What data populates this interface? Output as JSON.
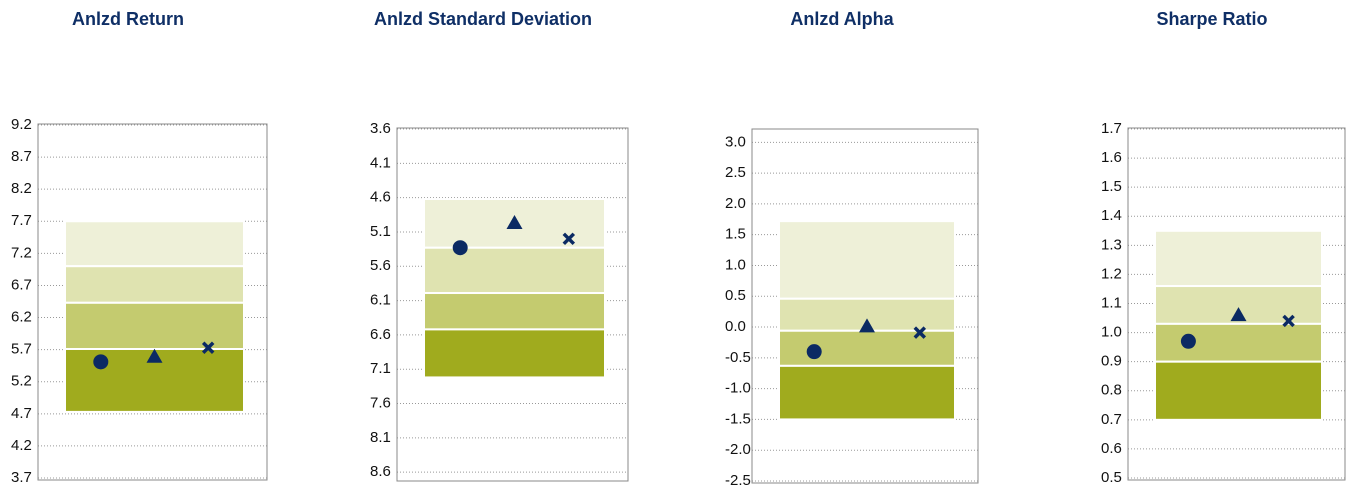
{
  "chart_data": [
    {
      "type": "range-markers",
      "title": "Anlzd Return",
      "ylim": [
        3.7,
        9.2
      ],
      "yticks": [
        9.2,
        8.7,
        8.2,
        7.7,
        7.2,
        6.7,
        6.2,
        5.7,
        5.2,
        4.7,
        4.2,
        3.7
      ],
      "grid": true,
      "inverted": false,
      "boundaries": [
        7.7,
        7.0,
        6.43,
        5.71,
        4.73
      ],
      "band_colors": [
        "#eef0d8",
        "#dfe3b0",
        "#c4cb6f",
        "#a0ab1e"
      ],
      "marker_color": "#0b2a63",
      "points": [
        {
          "marker": "circle",
          "value": 5.51
        },
        {
          "marker": "triangle",
          "value": 5.59
        },
        {
          "marker": "cross",
          "value": 5.73
        }
      ]
    },
    {
      "type": "range-markers",
      "title": "Anlzd Standard Deviation",
      "ylim": [
        3.6,
        8.7
      ],
      "yticks": [
        3.6,
        4.1,
        4.6,
        5.1,
        5.6,
        6.1,
        6.6,
        7.1,
        7.6,
        8.1,
        8.6
      ],
      "grid": true,
      "inverted": true,
      "boundaries": [
        4.62,
        5.33,
        5.99,
        6.52,
        7.22
      ],
      "band_colors": [
        "#eef0d8",
        "#dfe3b0",
        "#c4cb6f",
        "#a0ab1e"
      ],
      "marker_color": "#0b2a63",
      "points": [
        {
          "marker": "circle",
          "value": 5.33
        },
        {
          "marker": "triangle",
          "value": 4.97
        },
        {
          "marker": "cross",
          "value": 5.2
        }
      ]
    },
    {
      "type": "range-markers",
      "title": "Anlzd Alpha",
      "ylim": [
        -2.5,
        3.2
      ],
      "yticks": [
        {
          "value": 3,
          "label": "3.0"
        },
        2.5,
        {
          "value": 2,
          "label": "2.0"
        },
        1.5,
        {
          "value": 1,
          "label": "1.0"
        },
        0.5,
        {
          "value": 0,
          "label": "0.0"
        },
        -0.5,
        {
          "value": -1,
          "label": "-1.0"
        },
        -1.5,
        {
          "value": -2,
          "label": "-2.0"
        },
        -2.5
      ],
      "grid": true,
      "inverted": false,
      "boundaries": [
        1.72,
        0.46,
        -0.06,
        -0.63,
        -1.5
      ],
      "band_colors": [
        "#eef0d8",
        "#dfe3b0",
        "#c4cb6f",
        "#a0ab1e"
      ],
      "marker_color": "#0b2a63",
      "points": [
        {
          "marker": "circle",
          "value": -0.4
        },
        {
          "marker": "triangle",
          "value": 0.01
        },
        {
          "marker": "cross",
          "value": -0.09
        }
      ]
    },
    {
      "type": "range-markers",
      "title": "Sharpe Ratio",
      "ylim": [
        0.5,
        1.7
      ],
      "yticks": [
        1.7,
        1.6,
        1.5,
        1.4,
        1.3,
        1.2,
        1.1,
        {
          "value": 1,
          "label": "1.0"
        },
        0.9,
        0.8,
        0.7,
        0.6,
        0.5
      ],
      "grid": true,
      "inverted": false,
      "boundaries": [
        1.35,
        1.16,
        1.03,
        0.9,
        0.7
      ],
      "band_colors": [
        "#eef0d8",
        "#dfe3b0",
        "#c4cb6f",
        "#a0ab1e"
      ],
      "marker_color": "#0b2a63",
      "points": [
        {
          "marker": "circle",
          "value": 0.97
        },
        {
          "marker": "triangle",
          "value": 1.06
        },
        {
          "marker": "cross",
          "value": 1.04
        }
      ]
    }
  ]
}
